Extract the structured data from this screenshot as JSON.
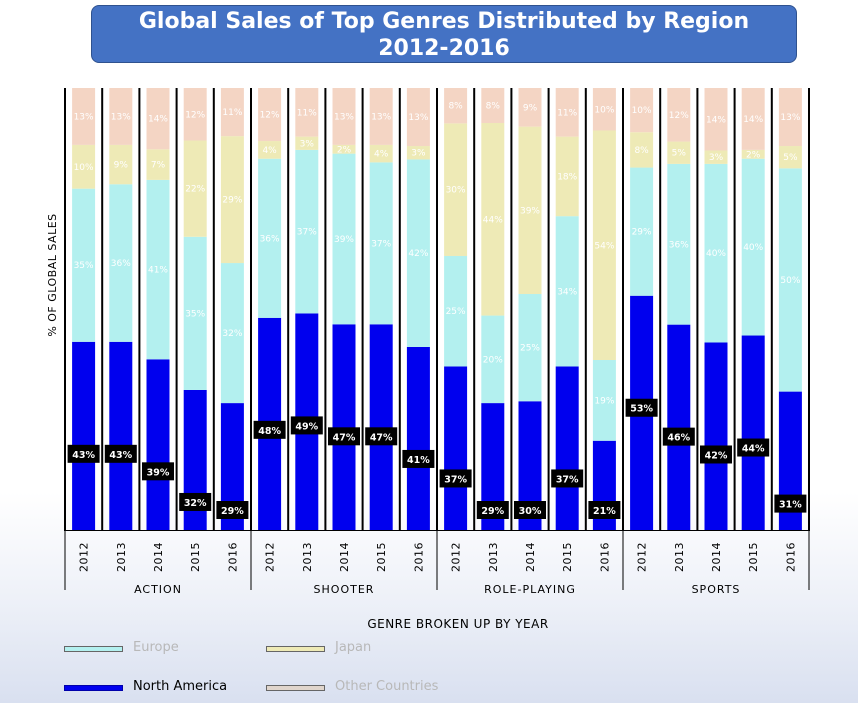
{
  "title": {
    "line1": "Global Sales of Top Genres Distributed by Region",
    "line2": "2012-2016"
  },
  "chart_data": {
    "type": "bar",
    "stacked": true,
    "percent_stacked": true,
    "title": "Global Sales of Top Genres Distributed by Region 2012-2016",
    "ylabel": "% OF GLOBAL SALES",
    "xlabel": "GENRE BROKEN UP BY YEAR",
    "ylim": [
      0,
      100
    ],
    "grid": false,
    "legend_position": "bottom-left",
    "groups": [
      {
        "name": "ACTION",
        "years": [
          "2012",
          "2013",
          "2014",
          "2015",
          "2016"
        ],
        "north_america": [
          43,
          43,
          39,
          32,
          29
        ],
        "europe": [
          35,
          36,
          41,
          35,
          32
        ],
        "japan": [
          10,
          9,
          7,
          22,
          29
        ],
        "other": [
          13,
          13,
          14,
          12,
          11
        ]
      },
      {
        "name": "SHOOTER",
        "years": [
          "2012",
          "2013",
          "2014",
          "2015",
          "2016"
        ],
        "north_america": [
          48,
          49,
          47,
          47,
          41
        ],
        "europe": [
          36,
          37,
          39,
          37,
          42
        ],
        "japan": [
          4,
          3,
          2,
          4,
          3
        ],
        "other": [
          12,
          11,
          13,
          13,
          13
        ]
      },
      {
        "name": "ROLE-PLAYING",
        "years": [
          "2012",
          "2013",
          "2014",
          "2015",
          "2016"
        ],
        "north_america": [
          37,
          29,
          30,
          37,
          21
        ],
        "europe": [
          25,
          20,
          25,
          34,
          19
        ],
        "japan": [
          30,
          44,
          39,
          18,
          54
        ],
        "other": [
          8,
          8,
          9,
          11,
          10
        ]
      },
      {
        "name": "SPORTS",
        "years": [
          "2012",
          "2013",
          "2014",
          "2015",
          "2016"
        ],
        "north_america": [
          53,
          46,
          42,
          44,
          31
        ],
        "europe": [
          29,
          36,
          40,
          40,
          50
        ],
        "japan": [
          8,
          5,
          3,
          2,
          5
        ],
        "other": [
          10,
          12,
          14,
          14,
          13
        ]
      }
    ],
    "series": [
      {
        "key": "north_america",
        "name": "North America",
        "color": "#0000ee"
      },
      {
        "key": "europe",
        "name": "Europe",
        "color": "#b3f0ef"
      },
      {
        "key": "japan",
        "name": "Japan",
        "color": "#eeeab6"
      },
      {
        "key": "other",
        "name": "Other Countries",
        "color": "#f4d5c4"
      }
    ]
  },
  "legend": {
    "europe": "Europe",
    "japan": "Japan",
    "north_america": "North America",
    "other": "Other Countries"
  }
}
